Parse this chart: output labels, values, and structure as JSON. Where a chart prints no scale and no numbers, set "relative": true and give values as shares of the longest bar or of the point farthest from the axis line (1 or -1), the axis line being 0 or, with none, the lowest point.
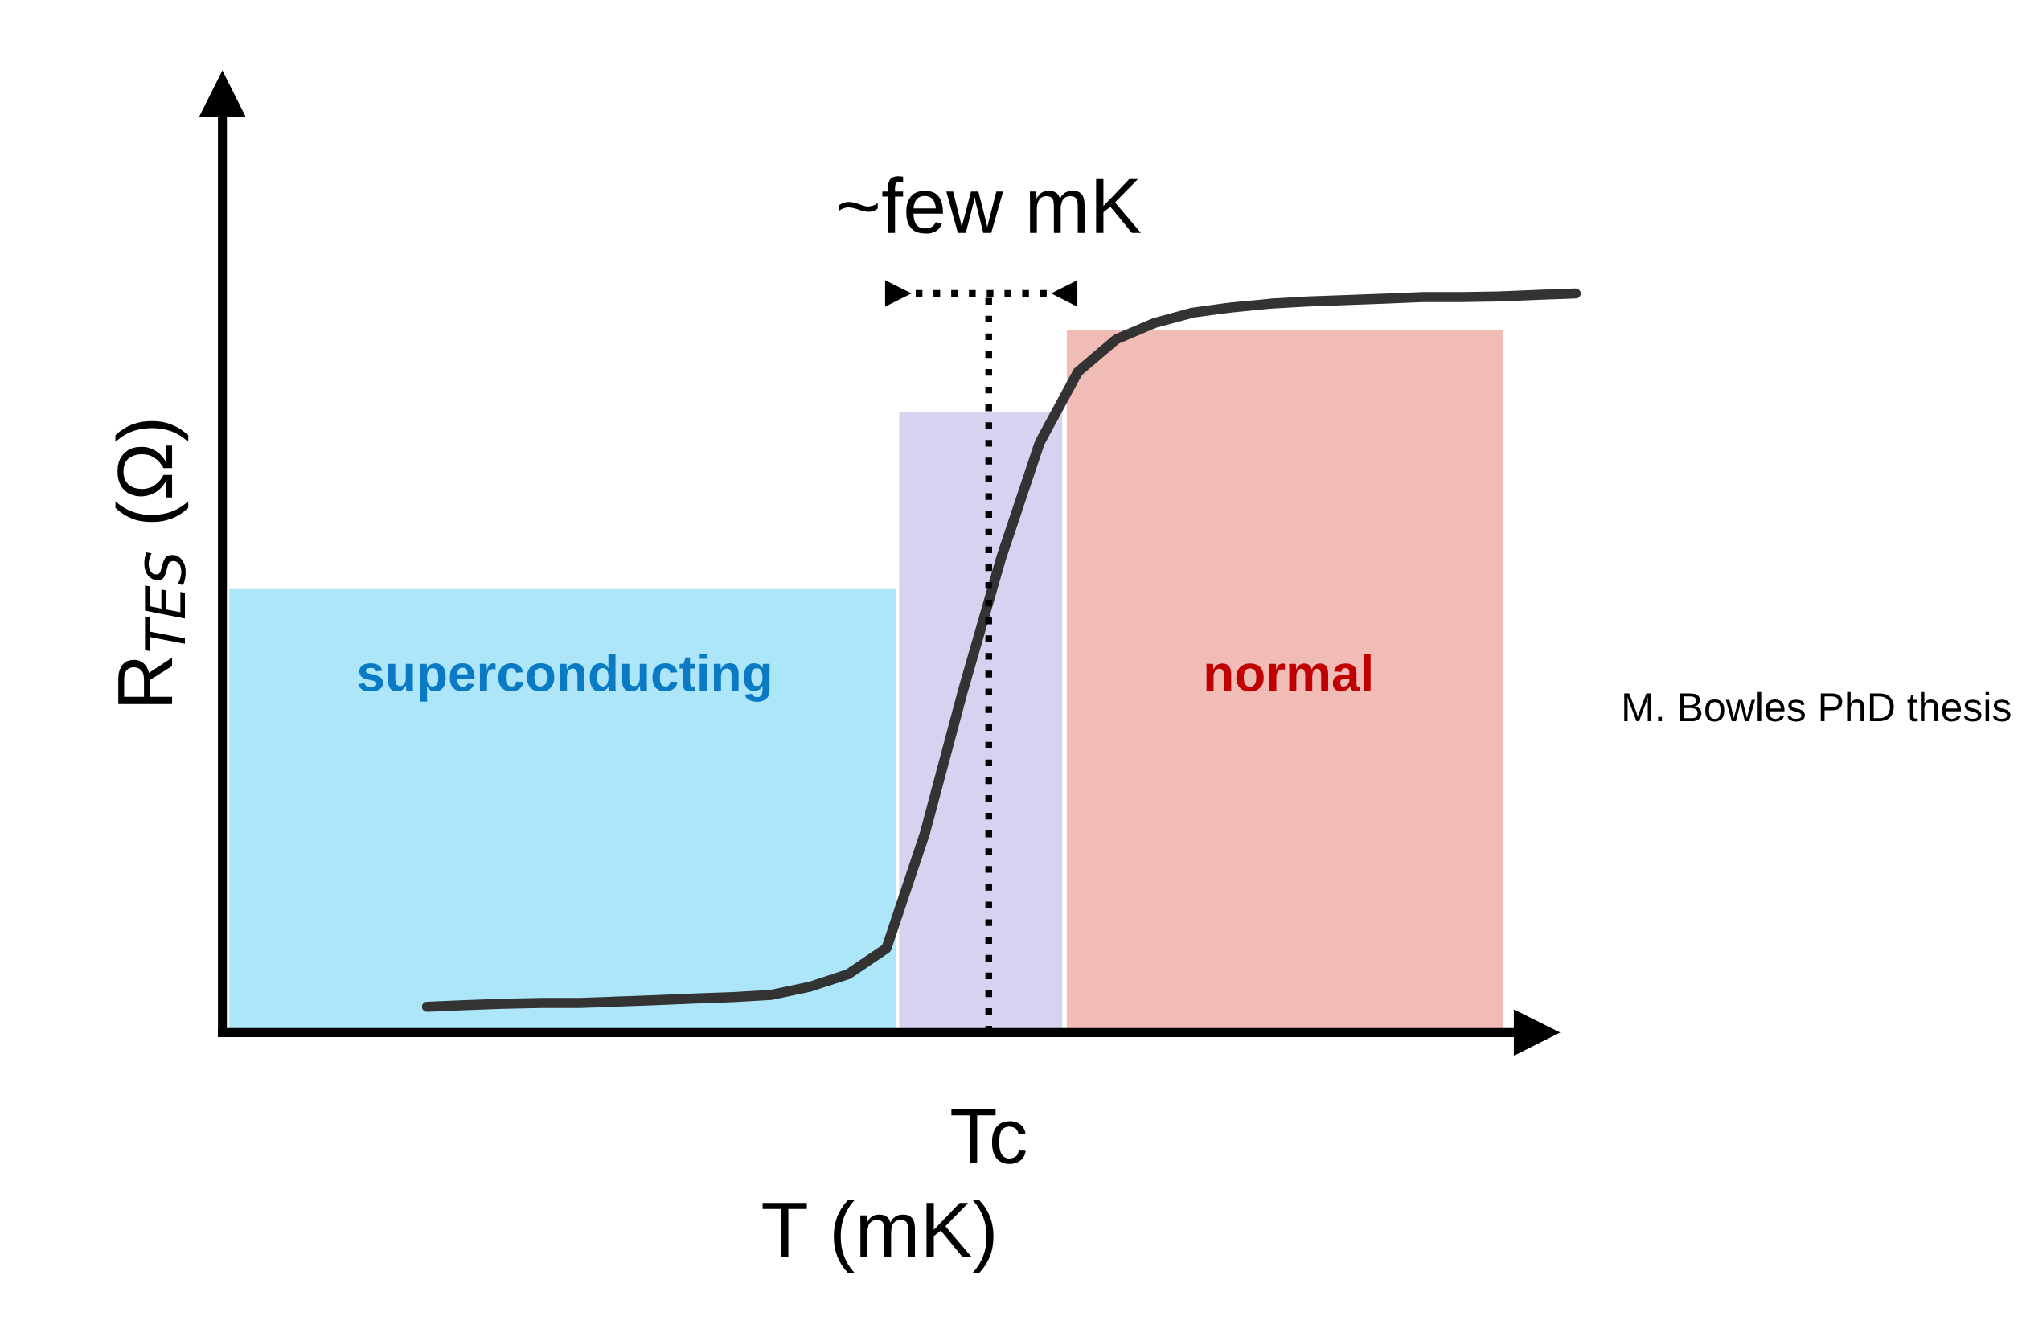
{
  "chart_data": {
    "type": "line",
    "relative": true,
    "xlabel": "T (mK)",
    "ylabel": "R$_{TES}$ (Ω)",
    "categories": [
      null,
      null,
      null,
      null,
      null,
      null,
      null,
      null,
      null,
      null,
      null,
      null,
      null,
      null,
      null,
      null,
      null,
      null,
      null,
      null,
      null,
      null,
      null,
      null,
      null,
      null,
      null,
      null,
      null,
      null,
      null
    ],
    "series": [
      {
        "color": "#333333",
        "values": [
          0.035,
          0.037,
          0.039,
          0.04,
          0.04,
          0.042,
          0.044,
          0.046,
          0.048,
          0.051,
          0.062,
          0.079,
          0.114,
          0.269,
          0.463,
          0.643,
          0.798,
          0.894,
          0.938,
          0.96,
          0.974,
          0.981,
          0.986,
          0.989,
          0.991,
          0.993,
          0.995,
          0.995,
          0.996,
          0.998,
          1.0
        ]
      }
    ],
    "annotations": [
      "~few mK",
      "M. Bowles PhD thesis",
      "superconducting",
      "normal",
      "Tc"
    ],
    "legend": false,
    "line_style": "solid"
  }
}
